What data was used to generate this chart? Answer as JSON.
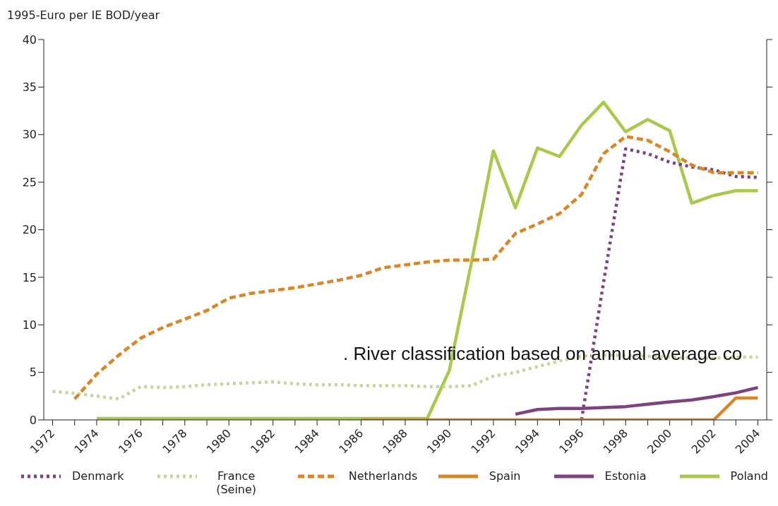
{
  "chart_data": {
    "type": "line",
    "ylabel": "1995-Euro per IE BOD/year",
    "annotations": [
      ". River classification based on annual average co"
    ],
    "x": [
      1972,
      1973,
      1974,
      1975,
      1976,
      1977,
      1978,
      1979,
      1980,
      1981,
      1982,
      1983,
      1984,
      1985,
      1986,
      1987,
      1988,
      1989,
      1990,
      1991,
      1992,
      1993,
      1994,
      1995,
      1996,
      1997,
      1998,
      1999,
      2000,
      2001,
      2002,
      2003,
      2004
    ],
    "xlim": [
      1971.6,
      2004.4
    ],
    "xticks": [
      1972,
      {
        "value": 1973,
        "label": null
      },
      1974,
      {
        "value": 1975,
        "label": null
      },
      1976,
      {
        "value": 1977,
        "label": null
      },
      1978,
      {
        "value": 1979,
        "label": null
      },
      1980,
      {
        "value": 1981,
        "label": null
      },
      1982,
      {
        "value": 1983,
        "label": null
      },
      1984,
      {
        "value": 1985,
        "label": null
      },
      1986,
      {
        "value": 1987,
        "label": null
      },
      1988,
      {
        "value": 1989,
        "label": null
      },
      1990,
      {
        "value": 1991,
        "label": null
      },
      1992,
      {
        "value": 1993,
        "label": null
      },
      1994,
      {
        "value": 1995,
        "label": null
      },
      1996,
      {
        "value": 1997,
        "label": null
      },
      1998,
      {
        "value": 1999,
        "label": null
      },
      2000,
      {
        "value": 2001,
        "label": null
      },
      2002,
      {
        "value": 2003,
        "label": null
      },
      2004
    ],
    "ylim": [
      0,
      40
    ],
    "yticks": [
      0,
      5,
      10,
      15,
      20,
      25,
      30,
      35,
      40
    ],
    "grid": false,
    "legend": "bottom",
    "marker": "none",
    "series": [
      {
        "name": "Denmark",
        "color": "#7d4380",
        "line_style": "dotted",
        "values": [
          null,
          null,
          null,
          null,
          null,
          null,
          null,
          null,
          null,
          null,
          null,
          null,
          null,
          null,
          null,
          null,
          null,
          null,
          null,
          null,
          null,
          null,
          null,
          null,
          0,
          14.5,
          28.5,
          28.0,
          27.1,
          26.6,
          26.3,
          25.6,
          25.5
        ]
      },
      {
        "name": "France (Seine)",
        "color": "#c3d69b",
        "line_style": "dotted",
        "values": [
          3.0,
          2.8,
          2.5,
          2.2,
          3.5,
          3.4,
          3.5,
          3.7,
          3.8,
          3.9,
          4.0,
          3.8,
          3.7,
          3.7,
          3.6,
          3.6,
          3.6,
          3.5,
          3.5,
          3.6,
          4.6,
          5.0,
          5.6,
          6.2,
          6.7,
          6.8,
          6.8,
          6.7,
          6.6,
          6.5,
          6.5,
          6.6,
          6.6
        ]
      },
      {
        "name": "Netherlands",
        "color": "#d98626",
        "line_style": "dashed",
        "values": [
          null,
          2.2,
          4.8,
          6.8,
          8.6,
          9.7,
          10.6,
          11.5,
          12.8,
          13.3,
          13.6,
          13.9,
          14.3,
          14.7,
          15.2,
          16.0,
          16.3,
          16.6,
          16.8,
          16.8,
          16.9,
          19.6,
          20.6,
          21.7,
          23.7,
          28.0,
          29.8,
          29.4,
          28.2,
          26.8,
          26.0,
          26.0,
          26.0
        ]
      },
      {
        "name": "Spain",
        "color": "#d98626",
        "line_style": "solid",
        "values": [
          null,
          null,
          null,
          null,
          null,
          null,
          null,
          null,
          null,
          null,
          null,
          null,
          null,
          null,
          0,
          0,
          0,
          0,
          0,
          0,
          0,
          0,
          0,
          0,
          0,
          0,
          0,
          0,
          0,
          0,
          0,
          2.3,
          2.3
        ]
      },
      {
        "name": "Estonia",
        "color": "#7d4380",
        "line_style": "solid",
        "values": [
          null,
          null,
          null,
          null,
          null,
          null,
          null,
          null,
          null,
          null,
          null,
          null,
          null,
          null,
          null,
          null,
          null,
          null,
          null,
          null,
          null,
          0.6,
          1.1,
          1.2,
          1.2,
          1.3,
          1.4,
          1.65,
          1.9,
          2.1,
          2.45,
          2.85,
          3.4
        ]
      },
      {
        "name": "Poland",
        "color": "#a9c94a",
        "line_style": "solid",
        "values": [
          null,
          null,
          0.15,
          0.15,
          0.15,
          0.15,
          0.15,
          0.15,
          0.15,
          0.15,
          0.15,
          0.15,
          0.15,
          0.15,
          0.15,
          0.15,
          0.15,
          0.15,
          5.2,
          16.5,
          28.3,
          22.3,
          28.6,
          27.7,
          31.0,
          33.4,
          30.3,
          31.6,
          30.4,
          22.8,
          23.6,
          24.1,
          24.1
        ]
      }
    ]
  }
}
